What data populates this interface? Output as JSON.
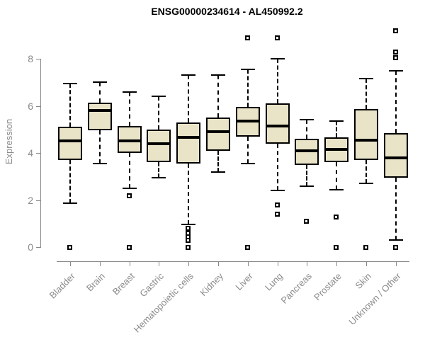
{
  "chart_data": {
    "type": "boxplot",
    "title": "ENSG00000234614 - AL450992.2",
    "ylabel": "Expression",
    "xlabel": "",
    "ylim": [
      0,
      9.3
    ],
    "yticks": [
      0,
      2,
      4,
      6,
      8
    ],
    "grid": false,
    "legend": null,
    "categories": [
      "Bladder",
      "Brain",
      "Breast",
      "Gastric",
      "Hematopoietic cells",
      "Kidney",
      "Liver",
      "Lung",
      "Pancreas",
      "Prostate",
      "Skin",
      "Unknown / Other"
    ],
    "series": [
      {
        "category": "Bladder",
        "whisker_low": 1.85,
        "q1": 3.7,
        "median": 4.5,
        "q3": 5.1,
        "whisker_high": 6.95,
        "outliers": [
          0
        ]
      },
      {
        "category": "Brain",
        "whisker_low": 3.55,
        "q1": 4.95,
        "median": 5.8,
        "q3": 6.15,
        "whisker_high": 7.0,
        "outliers": []
      },
      {
        "category": "Breast",
        "whisker_low": 2.5,
        "q1": 4.0,
        "median": 4.5,
        "q3": 5.15,
        "whisker_high": 6.6,
        "outliers": [
          2.2,
          0
        ]
      },
      {
        "category": "Gastric",
        "whisker_low": 2.95,
        "q1": 3.6,
        "median": 4.4,
        "q3": 5.0,
        "whisker_high": 6.4,
        "outliers": []
      },
      {
        "category": "Hematopoietic cells",
        "whisker_low": 0.95,
        "q1": 3.55,
        "median": 4.65,
        "q3": 5.3,
        "whisker_high": 7.3,
        "outliers": [
          0.8,
          0.6,
          0.45,
          0.3,
          0
        ]
      },
      {
        "category": "Kidney",
        "whisker_low": 3.2,
        "q1": 4.1,
        "median": 4.9,
        "q3": 5.5,
        "whisker_high": 7.3,
        "outliers": []
      },
      {
        "category": "Liver",
        "whisker_low": 3.55,
        "q1": 4.7,
        "median": 5.35,
        "q3": 5.95,
        "whisker_high": 7.55,
        "outliers": [
          8.9,
          0
        ]
      },
      {
        "category": "Lung",
        "whisker_low": 2.4,
        "q1": 4.4,
        "median": 5.15,
        "q3": 6.1,
        "whisker_high": 8.0,
        "outliers": [
          8.9,
          1.8,
          1.4
        ]
      },
      {
        "category": "Pancreas",
        "whisker_low": 2.6,
        "q1": 3.5,
        "median": 4.1,
        "q3": 4.6,
        "whisker_high": 5.4,
        "outliers": [
          1.1
        ]
      },
      {
        "category": "Prostate",
        "whisker_low": 2.45,
        "q1": 3.6,
        "median": 4.15,
        "q3": 4.65,
        "whisker_high": 5.35,
        "outliers": [
          1.3,
          0
        ]
      },
      {
        "category": "Skin",
        "whisker_low": 2.7,
        "q1": 3.7,
        "median": 4.55,
        "q3": 5.85,
        "whisker_high": 7.15,
        "outliers": [
          0
        ]
      },
      {
        "category": "Unknown / Other",
        "whisker_low": 0.3,
        "q1": 2.95,
        "median": 3.8,
        "q3": 4.85,
        "whisker_high": 7.5,
        "outliers": [
          9.2,
          8.3,
          8.05,
          0
        ]
      }
    ],
    "colors": {
      "box_fill": "#E9E4C8",
      "box_border": "#000000",
      "median": "#000000",
      "whisker": "#000000",
      "axis": "#888888",
      "tick_label": "#8a8a8a",
      "title": "#000000",
      "background": "#ffffff"
    }
  }
}
